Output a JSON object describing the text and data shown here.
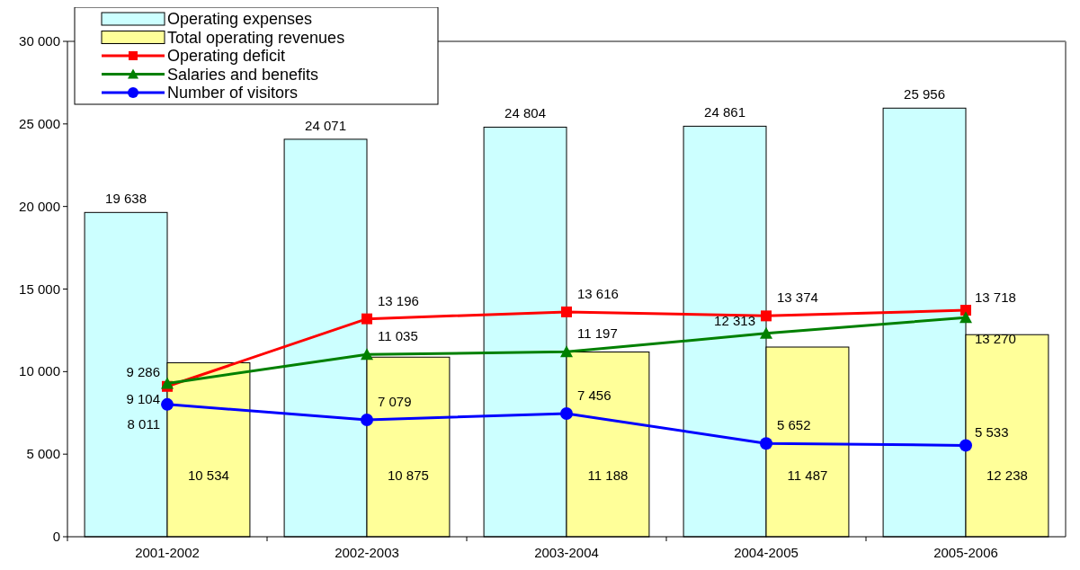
{
  "chart_data": {
    "type": "bar",
    "categories": [
      "2001-2002",
      "2002-2003",
      "2003-2004",
      "2004-2005",
      "2005-2006"
    ],
    "ylim": [
      0,
      30000
    ],
    "yticks": [
      {
        "value": 0,
        "label": "0"
      },
      {
        "value": 5000,
        "label": "5 000"
      },
      {
        "value": 10000,
        "label": "10 000"
      },
      {
        "value": 15000,
        "label": "15 000"
      },
      {
        "value": 20000,
        "label": "20 000"
      },
      {
        "value": 25000,
        "label": "25 000"
      },
      {
        "value": 30000,
        "label": "30 000"
      }
    ],
    "grid": false,
    "legend": "top left",
    "data_labels": true,
    "series": [
      {
        "name": "Operating expenses",
        "color": "#ccffff",
        "values": [
          19638,
          24071,
          24804,
          24861,
          25956
        ]
      },
      {
        "name": "Total operating revenues",
        "color": "#ffff99",
        "values": [
          10534,
          10875,
          11188,
          11487,
          12238
        ]
      },
      {
        "name": "Operating deficit",
        "type": "line",
        "marker": "square",
        "color": "#ff0000",
        "values": [
          9104,
          13196,
          13616,
          13374,
          13718
        ]
      },
      {
        "name": "Salaries and benefits",
        "type": "line",
        "marker": "triangle",
        "color": "#008000",
        "values": [
          9286,
          11035,
          11197,
          12313,
          13270
        ]
      },
      {
        "name": "Number of visitors",
        "type": "line",
        "marker": "circle",
        "color": "#0000ff",
        "values": [
          8011,
          7079,
          7456,
          5652,
          5533
        ]
      }
    ]
  }
}
